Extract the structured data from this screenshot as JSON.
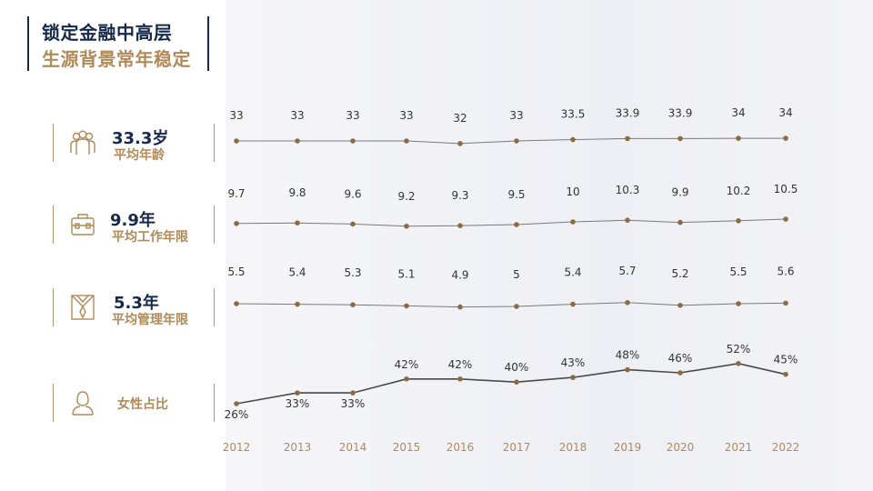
{
  "title": {
    "line1": "锁定金融中高层",
    "line2": "生源背景常年稳定"
  },
  "cards": [
    {
      "value": "33.3岁",
      "label": "平均年龄",
      "icon": "people-group-icon"
    },
    {
      "value": "9.9年",
      "label": "平均工作年限",
      "icon": "briefcase-icon"
    },
    {
      "value": "5.3年",
      "label": "平均管理年限",
      "icon": "suit-tie-icon"
    },
    {
      "value": "",
      "label": "女性占比",
      "icon": "woman-icon"
    }
  ],
  "colors": {
    "navy": "#16294a",
    "gold": "#b08a58",
    "line": "#5a5a5a",
    "marker": "#8c6a44"
  },
  "chart_data": {
    "type": "line",
    "categories": [
      "2012",
      "2013",
      "2014",
      "2015",
      "2016",
      "2017",
      "2018",
      "2019",
      "2020",
      "2021",
      "2022"
    ],
    "series": [
      {
        "values": [
          33,
          33,
          33,
          33,
          32,
          33,
          33.5,
          33.9,
          33.9,
          34,
          34
        ],
        "labels": [
          "33",
          "33",
          "33",
          "33",
          "32",
          "33",
          "33.5",
          "33.9",
          "33.9",
          "34",
          "34"
        ]
      },
      {
        "values": [
          9.7,
          9.8,
          9.6,
          9.2,
          9.3,
          9.5,
          10,
          10.3,
          9.9,
          10.2,
          10.5
        ],
        "labels": [
          "9.7",
          "9.8",
          "9.6",
          "9.2",
          "9.3",
          "9.5",
          "10",
          "10.3",
          "9.9",
          "10.2",
          "10.5"
        ]
      },
      {
        "values": [
          5.5,
          5.4,
          5.3,
          5.1,
          4.9,
          5,
          5.4,
          5.7,
          5.2,
          5.5,
          5.6
        ],
        "labels": [
          "5.5",
          "5.4",
          "5.3",
          "5.1",
          "4.9",
          "5",
          "5.4",
          "5.7",
          "5.2",
          "5.5",
          "5.6"
        ]
      },
      {
        "values": [
          26,
          33,
          33,
          42,
          42,
          40,
          43,
          48,
          46,
          52,
          45
        ],
        "labels": [
          "26%",
          "33%",
          "33%",
          "42%",
          "42%",
          "40%",
          "43%",
          "48%",
          "46%",
          "52%",
          "45%"
        ]
      }
    ]
  }
}
